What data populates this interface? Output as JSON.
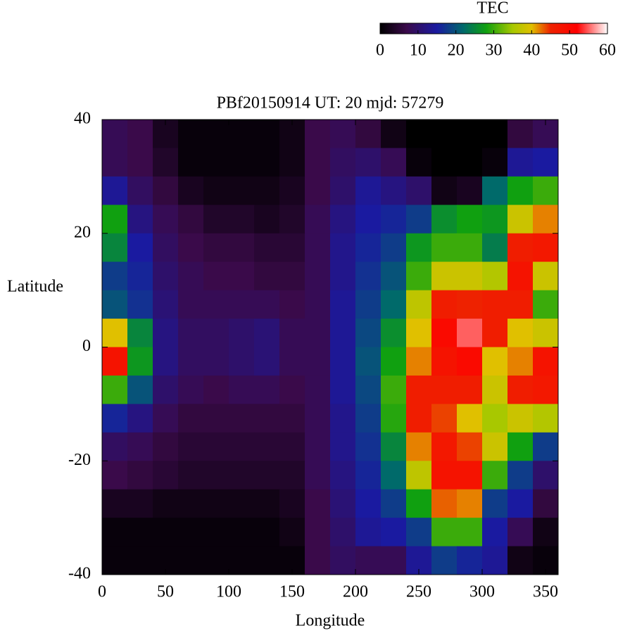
{
  "chart_data": {
    "type": "heatmap",
    "title": "PBf20150914  UT: 20  mjd: 57279",
    "xlabel": "Longitude",
    "ylabel": "Latitude",
    "x": [
      10,
      30,
      50,
      70,
      90,
      110,
      130,
      150,
      170,
      190,
      210,
      230,
      250,
      270,
      290,
      310,
      330,
      350
    ],
    "y": [
      37.5,
      32.5,
      27.5,
      22.5,
      17.5,
      12.5,
      7.5,
      2.5,
      -2.5,
      -7.5,
      -12.5,
      -17.5,
      -22.5,
      -27.5,
      -32.5,
      -37.5
    ],
    "z": [
      [
        8,
        7,
        3,
        1,
        1,
        1,
        1,
        2,
        7,
        8,
        6,
        2,
        0,
        0,
        0,
        0,
        6,
        8
      ],
      [
        8,
        7,
        4,
        1,
        1,
        1,
        1,
        2,
        7,
        9,
        10,
        8,
        1,
        0,
        0,
        1,
        14,
        15
      ],
      [
        14,
        9,
        6,
        3,
        2,
        2,
        2,
        3,
        7,
        10,
        14,
        12,
        10,
        2,
        3,
        22,
        28,
        30
      ],
      [
        28,
        12,
        8,
        6,
        4,
        4,
        3,
        4,
        8,
        12,
        15,
        16,
        18,
        26,
        28,
        27,
        38,
        42
      ],
      [
        25,
        15,
        9,
        7,
        6,
        6,
        5,
        5,
        8,
        13,
        16,
        18,
        27,
        30,
        30,
        24,
        46,
        47
      ],
      [
        18,
        16,
        10,
        8,
        7,
        7,
        6,
        6,
        8,
        13,
        17,
        20,
        30,
        38,
        38,
        36,
        48,
        38
      ],
      [
        20,
        17,
        11,
        8,
        8,
        8,
        8,
        7,
        8,
        14,
        18,
        22,
        37,
        46,
        45,
        46,
        46,
        30
      ],
      [
        40,
        25,
        12,
        9,
        9,
        10,
        11,
        8,
        8,
        14,
        19,
        26,
        40,
        50,
        55,
        46,
        40,
        38
      ],
      [
        48,
        27,
        12,
        9,
        9,
        10,
        11,
        8,
        8,
        14,
        20,
        28,
        42,
        48,
        50,
        40,
        42,
        48
      ],
      [
        30,
        20,
        10,
        8,
        7,
        8,
        8,
        7,
        8,
        14,
        19,
        30,
        46,
        46,
        46,
        38,
        46,
        47
      ],
      [
        16,
        12,
        8,
        6,
        6,
        6,
        6,
        6,
        8,
        13,
        18,
        29,
        46,
        44,
        40,
        35,
        38,
        36
      ],
      [
        9,
        8,
        6,
        5,
        5,
        5,
        5,
        5,
        8,
        13,
        17,
        25,
        42,
        47,
        44,
        38,
        28,
        18
      ],
      [
        7,
        6,
        5,
        4,
        4,
        4,
        4,
        4,
        8,
        12,
        16,
        22,
        37,
        48,
        48,
        30,
        18,
        10
      ],
      [
        3,
        3,
        2,
        2,
        2,
        2,
        2,
        3,
        7,
        11,
        15,
        18,
        28,
        43,
        42,
        18,
        15,
        6
      ],
      [
        1,
        1,
        1,
        1,
        1,
        1,
        1,
        2,
        7,
        10,
        14,
        15,
        18,
        30,
        30,
        15,
        8,
        2
      ],
      [
        1,
        1,
        1,
        1,
        1,
        1,
        1,
        1,
        7,
        9,
        8,
        8,
        14,
        18,
        16,
        14,
        2,
        1
      ]
    ],
    "xlim": [
      0,
      360
    ],
    "ylim": [
      -40,
      40
    ],
    "xticks": [
      0,
      50,
      100,
      150,
      200,
      250,
      300,
      350
    ],
    "yticks": [
      -40,
      -20,
      0,
      20,
      40
    ],
    "colorbar": {
      "label": "TEC",
      "lim": [
        0,
        60
      ],
      "ticks": [
        0,
        10,
        20,
        30,
        40,
        50,
        60
      ]
    },
    "colormap": [
      [
        0,
        "#000000"
      ],
      [
        7,
        "#3a0a4a"
      ],
      [
        15,
        "#1a1aa0"
      ],
      [
        22,
        "#006a6a"
      ],
      [
        28,
        "#10a010"
      ],
      [
        35,
        "#a8c800"
      ],
      [
        40,
        "#e0c000"
      ],
      [
        45,
        "#ee2200"
      ],
      [
        52,
        "#ff0000"
      ],
      [
        60,
        "#ffffff"
      ]
    ]
  }
}
